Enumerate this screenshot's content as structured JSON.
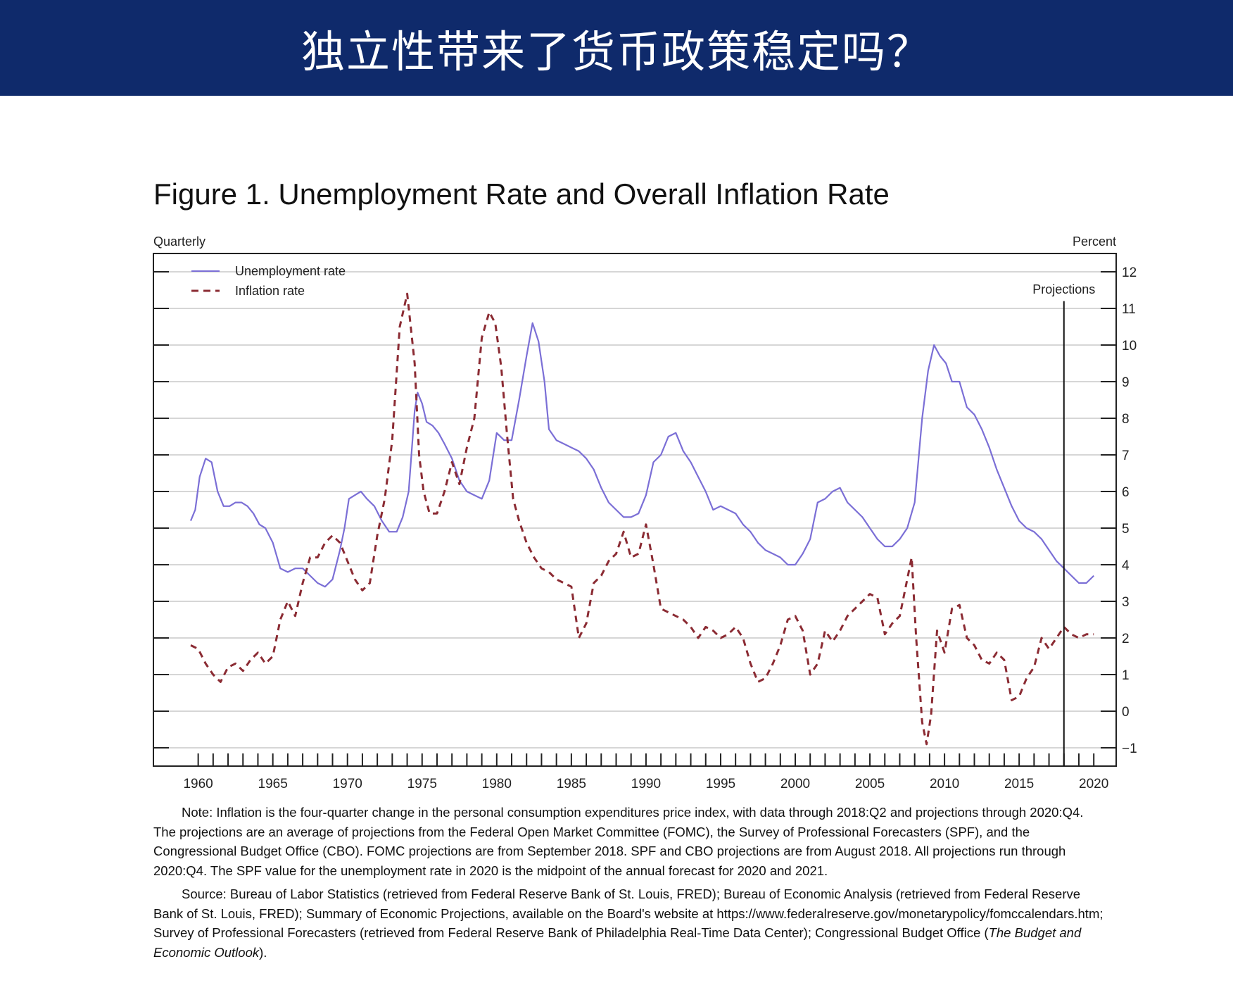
{
  "banner": {
    "title": "独立性带来了货币政策稳定吗？"
  },
  "figure": {
    "title": "Figure 1.  Unemployment Rate and Overall Inflation Rate",
    "note": "Note:  Inflation is the four-quarter change in the personal consumption expenditures price index, with data through 2018:Q2 and projections through 2020:Q4.  The projections are an average of projections from the Federal Open Market Committee (FOMC), the Survey of Professional Forecasters (SPF), and the Congressional Budget Office (CBO).  FOMC projections are from September 2018. SPF and CBO projections are from August 2018.  All projections run through 2020:Q4.  The SPF value for the unemployment rate in 2020 is the midpoint of the annual forecast for 2020 and 2021.",
    "source_prefix": "Source:  Bureau of Labor Statistics (retrieved from Federal Reserve Bank of St. Louis, FRED); Bureau of Economic Analysis (retrieved from Federal Reserve Bank of St. Louis, FRED); Summary of Economic Projections, available on the Board's website at https://www.federalreserve.gov/monetarypolicy/fomccalendars.htm; Survey of Professional Forecasters (retrieved from Federal Reserve Bank of Philadelphia Real-Time Data Center); Congressional Budget Office (",
    "source_italic": "The Budget and Economic Outlook",
    "source_suffix": ")."
  },
  "chart_data": {
    "type": "line",
    "left_label": "Quarterly",
    "right_label": "Percent",
    "projection_label": "Projections",
    "projection_x": 2018.5,
    "xlim": [
      1957.5,
      2022.0
    ],
    "ylim": [
      -1.5,
      12.5
    ],
    "y_ticks": [
      -1,
      0,
      1,
      2,
      3,
      4,
      5,
      6,
      7,
      8,
      9,
      10,
      11,
      12
    ],
    "x_tick_labels": [
      "1960",
      "1965",
      "1970",
      "1975",
      "1980",
      "1985",
      "1990",
      "1995",
      "2000",
      "2005",
      "2010",
      "2015",
      "2020"
    ],
    "grid": true,
    "legend_position": "top-left",
    "colors": {
      "unemployment": "#7b6fd6",
      "inflation": "#8b2b33",
      "banner": "#0f2a6b"
    },
    "series": [
      {
        "name": "Unemployment rate",
        "style": "solid",
        "x": [
          1960.0,
          1960.3,
          1960.6,
          1961.0,
          1961.4,
          1961.8,
          1962.2,
          1962.6,
          1963.0,
          1963.4,
          1963.8,
          1964.2,
          1964.6,
          1965.0,
          1965.5,
          1966.0,
          1966.5,
          1967.0,
          1967.5,
          1968.0,
          1968.5,
          1969.0,
          1969.5,
          1970.0,
          1970.3,
          1970.6,
          1971.0,
          1971.4,
          1971.8,
          1972.3,
          1972.8,
          1973.3,
          1973.8,
          1974.2,
          1974.6,
          1975.0,
          1975.2,
          1975.5,
          1975.8,
          1976.2,
          1976.6,
          1977.0,
          1977.5,
          1978.0,
          1978.5,
          1979.0,
          1979.5,
          1980.0,
          1980.5,
          1981.0,
          1981.5,
          1982.0,
          1982.5,
          1982.9,
          1983.3,
          1983.7,
          1984.0,
          1984.5,
          1985.0,
          1985.5,
          1986.0,
          1986.5,
          1987.0,
          1987.5,
          1988.0,
          1988.5,
          1989.0,
          1989.5,
          1990.0,
          1990.5,
          1991.0,
          1991.5,
          1992.0,
          1992.5,
          1993.0,
          1993.5,
          1994.0,
          1994.5,
          1995.0,
          1995.5,
          1996.0,
          1996.5,
          1997.0,
          1997.5,
          1998.0,
          1998.5,
          1999.0,
          1999.5,
          2000.0,
          2000.5,
          2001.0,
          2001.5,
          2002.0,
          2002.5,
          2003.0,
          2003.5,
          2004.0,
          2004.5,
          2005.0,
          2005.5,
          2006.0,
          2006.5,
          2007.0,
          2007.5,
          2008.0,
          2008.5,
          2009.0,
          2009.4,
          2009.8,
          2010.2,
          2010.6,
          2011.0,
          2011.5,
          2012.0,
          2012.5,
          2013.0,
          2013.5,
          2014.0,
          2014.5,
          2015.0,
          2015.5,
          2016.0,
          2016.5,
          2017.0,
          2017.5,
          2018.0,
          2018.5,
          2019.0,
          2019.5,
          2020.0,
          2020.5
        ],
        "y": [
          5.2,
          5.5,
          6.4,
          6.9,
          6.8,
          6.0,
          5.6,
          5.6,
          5.7,
          5.7,
          5.6,
          5.4,
          5.1,
          5.0,
          4.6,
          3.9,
          3.8,
          3.9,
          3.9,
          3.7,
          3.5,
          3.4,
          3.6,
          4.4,
          5.0,
          5.8,
          5.9,
          6.0,
          5.8,
          5.6,
          5.2,
          4.9,
          4.9,
          5.3,
          6.0,
          8.2,
          8.7,
          8.4,
          7.9,
          7.8,
          7.6,
          7.3,
          6.9,
          6.3,
          6.0,
          5.9,
          5.8,
          6.3,
          7.6,
          7.4,
          7.4,
          8.5,
          9.7,
          10.6,
          10.1,
          9.0,
          7.7,
          7.4,
          7.3,
          7.2,
          7.1,
          6.9,
          6.6,
          6.1,
          5.7,
          5.5,
          5.3,
          5.3,
          5.4,
          5.9,
          6.8,
          7.0,
          7.5,
          7.6,
          7.1,
          6.8,
          6.4,
          6.0,
          5.5,
          5.6,
          5.5,
          5.4,
          5.1,
          4.9,
          4.6,
          4.4,
          4.3,
          4.2,
          4.0,
          4.0,
          4.3,
          4.7,
          5.7,
          5.8,
          6.0,
          6.1,
          5.7,
          5.5,
          5.3,
          5.0,
          4.7,
          4.5,
          4.5,
          4.7,
          5.0,
          5.7,
          8.0,
          9.3,
          10.0,
          9.7,
          9.5,
          9.0,
          9.0,
          8.3,
          8.1,
          7.7,
          7.2,
          6.6,
          6.1,
          5.6,
          5.2,
          5.0,
          4.9,
          4.7,
          4.4,
          4.1,
          3.9,
          3.7,
          3.5,
          3.5,
          3.7
        ]
      },
      {
        "name": "Inflation rate",
        "style": "dashed",
        "x": [
          1960.0,
          1960.5,
          1961.0,
          1961.5,
          1962.0,
          1962.5,
          1963.0,
          1963.5,
          1964.0,
          1964.5,
          1965.0,
          1965.5,
          1966.0,
          1966.5,
          1967.0,
          1967.5,
          1968.0,
          1968.5,
          1969.0,
          1969.5,
          1970.0,
          1970.5,
          1971.0,
          1971.5,
          1972.0,
          1972.5,
          1973.0,
          1973.5,
          1974.0,
          1974.5,
          1975.0,
          1975.3,
          1975.6,
          1976.0,
          1976.5,
          1977.0,
          1977.5,
          1978.0,
          1978.5,
          1979.0,
          1979.5,
          1980.0,
          1980.4,
          1980.8,
          1981.2,
          1981.6,
          1982.0,
          1982.5,
          1983.0,
          1983.5,
          1984.0,
          1984.5,
          1985.0,
          1985.5,
          1986.0,
          1986.5,
          1987.0,
          1987.5,
          1988.0,
          1988.5,
          1989.0,
          1989.5,
          1990.0,
          1990.5,
          1991.0,
          1991.5,
          1992.0,
          1992.5,
          1993.0,
          1993.5,
          1994.0,
          1994.5,
          1995.0,
          1995.5,
          1996.0,
          1996.5,
          1997.0,
          1997.5,
          1998.0,
          1998.5,
          1999.0,
          1999.5,
          2000.0,
          2000.5,
          2001.0,
          2001.5,
          2002.0,
          2002.5,
          2003.0,
          2003.5,
          2004.0,
          2004.5,
          2005.0,
          2005.5,
          2006.0,
          2006.5,
          2007.0,
          2007.5,
          2008.0,
          2008.3,
          2008.6,
          2009.0,
          2009.3,
          2009.6,
          2010.0,
          2010.5,
          2011.0,
          2011.5,
          2012.0,
          2012.5,
          2013.0,
          2013.5,
          2014.0,
          2014.5,
          2015.0,
          2015.5,
          2016.0,
          2016.5,
          2017.0,
          2017.5,
          2018.0,
          2018.5,
          2019.0,
          2019.5,
          2020.0,
          2020.5
        ],
        "y": [
          1.8,
          1.7,
          1.3,
          1.0,
          0.8,
          1.2,
          1.3,
          1.1,
          1.4,
          1.6,
          1.3,
          1.5,
          2.5,
          3.0,
          2.6,
          3.5,
          4.2,
          4.2,
          4.6,
          4.8,
          4.6,
          4.1,
          3.6,
          3.3,
          3.5,
          4.8,
          5.8,
          7.4,
          10.5,
          11.4,
          9.5,
          7.0,
          6.0,
          5.4,
          5.4,
          6.0,
          6.8,
          6.2,
          7.2,
          8.0,
          10.2,
          10.9,
          10.6,
          9.4,
          7.5,
          5.8,
          5.2,
          4.6,
          4.2,
          3.9,
          3.8,
          3.6,
          3.5,
          3.4,
          2.0,
          2.4,
          3.5,
          3.7,
          4.1,
          4.3,
          4.9,
          4.2,
          4.3,
          5.1,
          4.0,
          2.8,
          2.7,
          2.6,
          2.5,
          2.3,
          2.0,
          2.3,
          2.2,
          2.0,
          2.1,
          2.3,
          2.0,
          1.3,
          0.8,
          0.9,
          1.3,
          1.8,
          2.5,
          2.6,
          2.2,
          1.0,
          1.3,
          2.2,
          1.9,
          2.2,
          2.6,
          2.8,
          3.0,
          3.2,
          3.1,
          2.1,
          2.4,
          2.6,
          3.6,
          4.2,
          2.0,
          -0.3,
          -0.9,
          -0.1,
          2.2,
          1.6,
          2.8,
          2.9,
          2.0,
          1.8,
          1.4,
          1.3,
          1.6,
          1.4,
          0.3,
          0.4,
          0.9,
          1.2,
          2.0,
          1.7,
          2.0,
          2.3,
          2.1,
          2.0,
          2.1,
          2.1
        ]
      }
    ]
  }
}
